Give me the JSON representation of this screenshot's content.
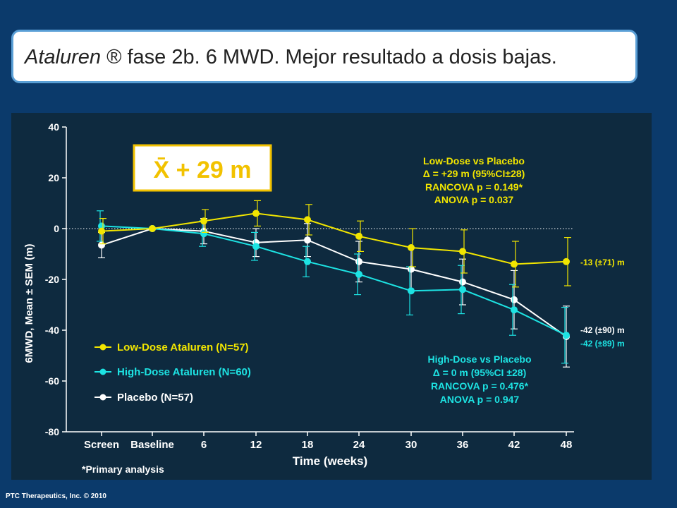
{
  "header": {
    "title_italic": "Ataluren",
    "title_rest": " ® fase 2b. 6 MWD. Mejor resultado a dosis bajas."
  },
  "overlay_label": "X̄ + 29 m",
  "footer": "PTC Therapeutics, Inc. © 2010",
  "footnote": "*Primary analysis",
  "colors": {
    "low": "#f2e600",
    "high": "#1de3e3",
    "placebo": "#ffffff",
    "overlay": "#f2c200"
  },
  "annotations": {
    "low_box": [
      "Low-Dose vs Placebo",
      "Δ = +29 m (95%CI±28)",
      "RANCOVA p = 0.149*",
      "ANOVA p = 0.037"
    ],
    "high_box": [
      "High-Dose vs Placebo",
      "Δ = 0 m (95%CI ±28)",
      "RANCOVA p = 0.476*",
      "ANOVA p = 0.947"
    ],
    "end_labels": {
      "low": "-13 (±71) m",
      "placebo": "-42 (±90) m",
      "high": "-42 (±89) m"
    }
  },
  "chart_data": {
    "type": "line",
    "ylabel": "6MWD, Mean ± SEM (m)",
    "xlabel": "Time (weeks)",
    "ylim": [
      -80,
      40
    ],
    "yticks": [
      40,
      20,
      0,
      -20,
      -40,
      -60,
      -80
    ],
    "categories": [
      "Screen",
      "Baseline",
      "6",
      "12",
      "18",
      "24",
      "30",
      "36",
      "42",
      "48"
    ],
    "legend_position": "bottom-left",
    "series": [
      {
        "name": "Low-Dose Ataluren (N=57)",
        "key": "low",
        "values": [
          -1,
          0,
          3,
          6,
          3.5,
          -3,
          -7.5,
          -9,
          -14,
          -13
        ],
        "err": [
          5,
          0,
          4.5,
          5,
          6,
          6,
          7.5,
          8.5,
          9,
          9.5
        ]
      },
      {
        "name": "High-Dose Ataluren (N=60)",
        "key": "high",
        "values": [
          1,
          0,
          -2,
          -7,
          -13,
          -18,
          -24.5,
          -24,
          -32,
          -42
        ],
        "err": [
          6,
          0,
          5,
          5.5,
          6,
          8,
          9.5,
          9.5,
          10,
          11
        ]
      },
      {
        "name": "Placebo (N=57)",
        "key": "placebo",
        "values": [
          -6.5,
          0,
          -1,
          -5.5,
          -4.5,
          -13,
          -16,
          -21,
          -28,
          -42.5
        ],
        "err": [
          5,
          0,
          5,
          5.5,
          6.5,
          8,
          8.5,
          9,
          11.5,
          12
        ]
      }
    ]
  }
}
